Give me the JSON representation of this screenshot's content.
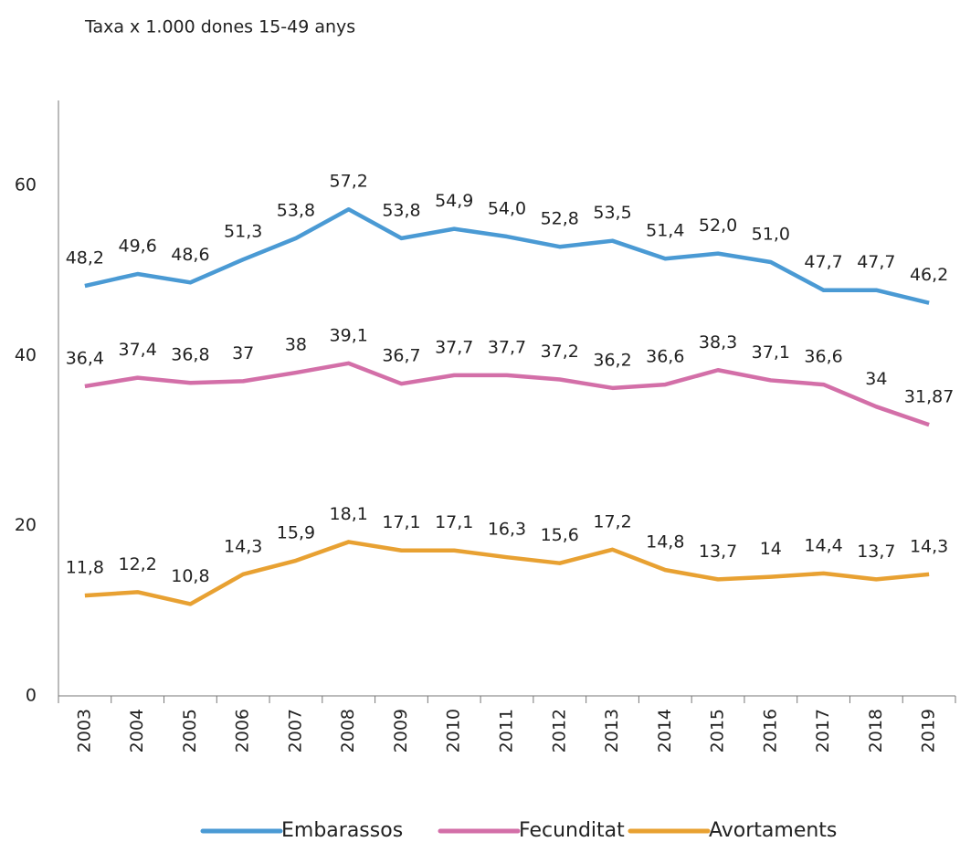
{
  "chart_data": {
    "type": "line",
    "title": "Taxa x 1.000 dones 15-49 anys",
    "categories": [
      "2003",
      "2004",
      "2005",
      "2006",
      "2007",
      "2008",
      "2009",
      "2010",
      "2011",
      "2012",
      "2013",
      "2014",
      "2015",
      "2016",
      "2017",
      "2018",
      "2019"
    ],
    "series": [
      {
        "name": "Embarassos",
        "color": "#4a9ad4",
        "values": [
          48.2,
          49.6,
          48.6,
          51.3,
          53.8,
          57.2,
          53.8,
          54.9,
          54.0,
          52.8,
          53.5,
          51.4,
          52.0,
          51.0,
          47.7,
          47.7,
          46.2
        ],
        "value_labels": [
          "48,2",
          "49,6",
          "48,6",
          "51,3",
          "53,8",
          "57,2",
          "53,8",
          "54,9",
          "54,0",
          "52,8",
          "53,5",
          "51,4",
          "52,0",
          "51,0",
          "47,7",
          "47,7",
          "46,2"
        ]
      },
      {
        "name": "Fecunditat",
        "color": "#d36fa8",
        "values": [
          36.4,
          37.4,
          36.8,
          37,
          38,
          39.1,
          36.7,
          37.7,
          37.7,
          37.2,
          36.2,
          36.6,
          38.3,
          37.1,
          36.6,
          34,
          31.87
        ],
        "value_labels": [
          "36,4",
          "37,4",
          "36,8",
          "37",
          "38",
          "39,1",
          "36,7",
          "37,7",
          "37,7",
          "37,2",
          "36,2",
          "36,6",
          "38,3",
          "37,1",
          "36,6",
          "34",
          "31,87"
        ]
      },
      {
        "name": "Avortaments",
        "color": "#e8a132",
        "values": [
          11.8,
          12.2,
          10.8,
          14.3,
          15.9,
          18.1,
          17.1,
          17.1,
          16.3,
          15.6,
          17.2,
          14.8,
          13.7,
          14,
          14.4,
          13.7,
          14.3
        ],
        "value_labels": [
          "11,8",
          "12,2",
          "10,8",
          "14,3",
          "15,9",
          "18,1",
          "17,1",
          "17,1",
          "16,3",
          "15,6",
          "17,2",
          "14,8",
          "13,7",
          "14",
          "14,4",
          "13,7",
          "14,3"
        ]
      }
    ],
    "ylim": [
      0,
      70
    ],
    "yticks": [
      0,
      20,
      40,
      60
    ],
    "grid": false,
    "legend": "bottom"
  }
}
